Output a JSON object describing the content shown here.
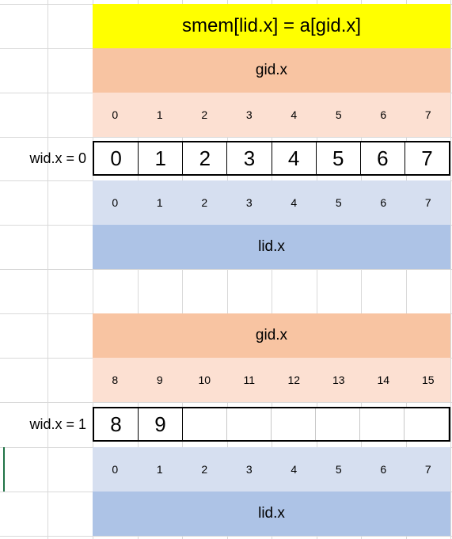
{
  "title": "smem[lid.x] = a[gid.x]",
  "blocks": [
    {
      "gid_label": "gid.x",
      "gid_indices": [
        "0",
        "1",
        "2",
        "3",
        "4",
        "5",
        "6",
        "7"
      ],
      "row_label": "wid.x = 0",
      "values": [
        "0",
        "1",
        "2",
        "3",
        "4",
        "5",
        "6",
        "7"
      ],
      "lid_indices": [
        "0",
        "1",
        "2",
        "3",
        "4",
        "5",
        "6",
        "7"
      ],
      "lid_label": "lid.x"
    },
    {
      "gid_label": "gid.x",
      "gid_indices": [
        "8",
        "9",
        "10",
        "11",
        "12",
        "13",
        "14",
        "15"
      ],
      "row_label": "wid.x = 1",
      "values": [
        "8",
        "9",
        "",
        "",
        "",
        "",
        "",
        ""
      ],
      "lid_indices": [
        "0",
        "1",
        "2",
        "3",
        "4",
        "5",
        "6",
        "7"
      ],
      "lid_label": "lid.x"
    }
  ],
  "colors": {
    "title_bg": "#ffff00",
    "gid_bg": "#f8c4a2",
    "gid_index_bg": "#fce0d2",
    "lid_index_bg": "#d6dff0",
    "lid_bg": "#adc3e6"
  }
}
